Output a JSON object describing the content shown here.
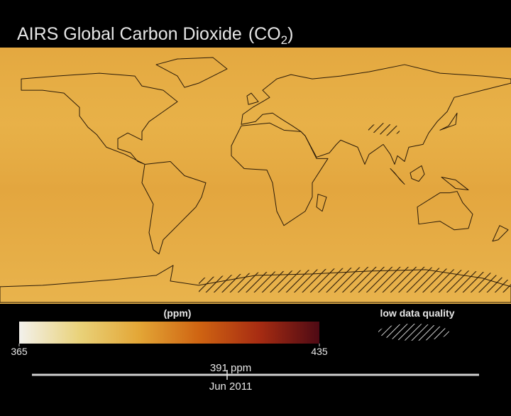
{
  "title": {
    "text": "AIRS Global Carbon Dioxide",
    "formula": "(CO",
    "subscript": "2",
    "closing": ")"
  },
  "map": {
    "fill": "#e6ae45",
    "land_outline": "#2a1a08"
  },
  "colorbar": {
    "unit": "(ppm)",
    "ticks": [
      365,
      435
    ],
    "colors": [
      "#f3f1ec",
      "#e9d27a",
      "#e3a636",
      "#cf6412",
      "#a72c12",
      "#4e0a14"
    ]
  },
  "legend": {
    "label": "low data quality"
  },
  "timeline": {
    "reading": "391 ppm",
    "date": "Jun 2011"
  }
}
